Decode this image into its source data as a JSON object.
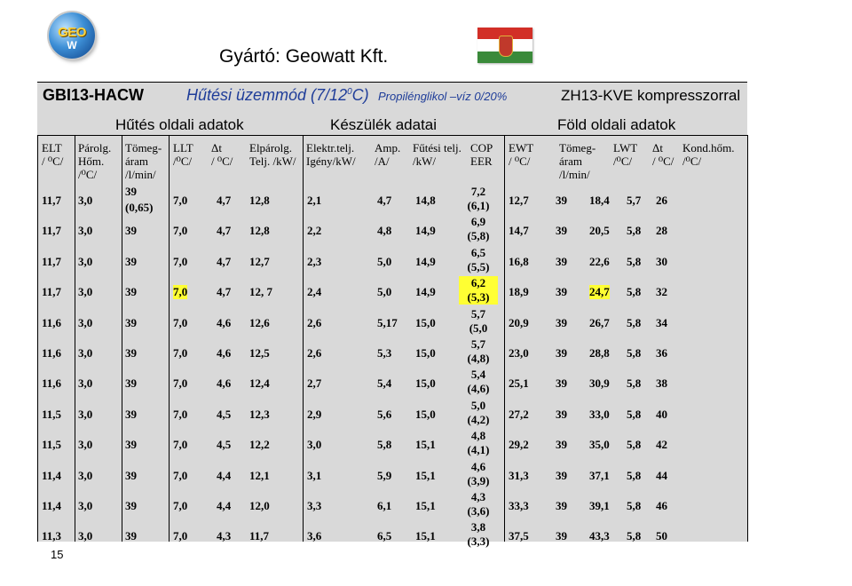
{
  "logo": {
    "text": "GEO",
    "mark": "W"
  },
  "header": {
    "manufacturer": "Gyártó: Geowatt Kft.",
    "model": "GBI13-HACW",
    "mode": "Hűtési üzemmód (7/12",
    "mode_sup": "0",
    "mode_end": "C)",
    "glycol": "Propilénglikol –víz 0/20%",
    "compressor": "ZH13-KVE kompresszorral"
  },
  "sections": {
    "cooling_side": "Hűtés oldali adatok",
    "device": "Készülék adatai",
    "ground_side": "Föld oldali adatok"
  },
  "columns": [
    {
      "l1": "ELT",
      "l2": "/ ⁰C/"
    },
    {
      "l1": "Párolg.",
      "l2": "Hőm.",
      "l3": "/⁰C/"
    },
    {
      "l1": "Tömeg-",
      "l2": "áram",
      "l3": "/l/min/"
    },
    {
      "l1": "LLT",
      "l2": "/⁰C/"
    },
    {
      "l1": "Δt",
      "l2": "/ ⁰C/"
    },
    {
      "l1": "Elpárolg.",
      "l2": "Telj. /kW/"
    },
    {
      "l1": "Elektr.telj.",
      "l2": "Igény/kW/"
    },
    {
      "l1": "Amp.",
      "l2": "/A/"
    },
    {
      "l1": "Fűtési telj.",
      "l2": "/kW/"
    },
    {
      "l1": "COP",
      "l2": "EER"
    },
    {
      "l1": "EWT",
      "l2": "/ ⁰C/"
    },
    {
      "l1": "Tömeg-",
      "l2": "áram",
      "l3": "/l/min/"
    },
    {
      "l1": "LWT",
      "l2": "/⁰C/"
    },
    {
      "l1": "Δt",
      "l2": "/ ⁰C/"
    },
    {
      "l1": "Kond.hőm.",
      "l2": "/⁰C/"
    }
  ],
  "rows": [
    {
      "elt": "11,7",
      "evap": "3,0",
      "flow": "39",
      "flow2": "(0,65)",
      "llt": "7,0",
      "dt": "4,7",
      "cap": "12,8",
      "pow": "2,1",
      "amp": "4,7",
      "heat": "14,8",
      "cop": "7,2",
      "eer": "(6,1)",
      "ewt": "12,7",
      "gflow": "39",
      "lwt": "18,4",
      "gdt": "5,7",
      "cond": "26"
    },
    {
      "elt": "11,7",
      "evap": "3,0",
      "flow": "39",
      "llt": "7,0",
      "dt": "4,7",
      "cap": "12,8",
      "pow": "2,2",
      "amp": "4,8",
      "heat": "14,9",
      "cop": "6,9",
      "eer": "(5,8)",
      "ewt": "14,7",
      "gflow": "39",
      "lwt": "20,5",
      "gdt": "5,8",
      "cond": "28"
    },
    {
      "elt": "11,7",
      "evap": "3,0",
      "flow": "39",
      "llt": "7,0",
      "dt": "4,7",
      "cap": "12,7",
      "pow": "2,3",
      "amp": "5,0",
      "heat": "14,9",
      "cop": "6,5",
      "eer": "(5,5)",
      "ewt": "16,8",
      "gflow": "39",
      "lwt": "22,6",
      "gdt": "5,8",
      "cond": "30"
    },
    {
      "elt": "11,7",
      "evap": "3,0",
      "flow": "39",
      "llt": "7,0",
      "dt": "4,7",
      "cap": "12, 7",
      "pow": "2,4",
      "amp": "5,0",
      "heat": "14,9",
      "cop": "6,2",
      "eer": "(5,3)",
      "ewt": "18,9",
      "gflow": "39",
      "lwt": "24,7",
      "gdt": "5,8",
      "cond": "32"
    },
    {
      "elt": "11,6",
      "evap": "3,0",
      "flow": "39",
      "llt": "7,0",
      "dt": "4,6",
      "cap": "12,6",
      "pow": "2,6",
      "amp": "5,17",
      "heat": "15,0",
      "cop": "5,7",
      "eer": "(5,0",
      "ewt": "20,9",
      "gflow": "39",
      "lwt": "26,7",
      "gdt": "5,8",
      "cond": "34"
    },
    {
      "elt": "11,6",
      "evap": "3,0",
      "flow": "39",
      "llt": "7,0",
      "dt": "4,6",
      "cap": "12,5",
      "pow": "2,6",
      "amp": "5,3",
      "heat": "15,0",
      "cop": "5,7",
      "eer": "(4,8)",
      "ewt": "23,0",
      "gflow": "39",
      "lwt": "28,8",
      "gdt": "5,8",
      "cond": "36"
    },
    {
      "elt": "11,6",
      "evap": "3,0",
      "flow": "39",
      "llt": "7,0",
      "dt": "4,6",
      "cap": "12,4",
      "pow": "2,7",
      "amp": "5,4",
      "heat": "15,0",
      "cop": "5,4",
      "eer": "(4,6)",
      "ewt": "25,1",
      "gflow": "39",
      "lwt": "30,9",
      "gdt": "5,8",
      "cond": "38"
    },
    {
      "elt": "11,5",
      "evap": "3,0",
      "flow": "39",
      "llt": "7,0",
      "dt": "4,5",
      "cap": "12,3",
      "pow": "2,9",
      "amp": "5,6",
      "heat": "15,0",
      "cop": "5,0",
      "eer": "(4,2)",
      "ewt": "27,2",
      "gflow": "39",
      "lwt": "33,0",
      "gdt": "5,8",
      "cond": "40"
    },
    {
      "elt": "11,5",
      "evap": "3,0",
      "flow": "39",
      "llt": "7,0",
      "dt": "4,5",
      "cap": "12,2",
      "pow": "3,0",
      "amp": "5,8",
      "heat": "15,1",
      "cop": "4,8",
      "eer": "(4,1)",
      "ewt": "29,2",
      "gflow": "39",
      "lwt": "35,0",
      "gdt": "5,8",
      "cond": "42"
    },
    {
      "elt": "11,4",
      "evap": "3,0",
      "flow": "39",
      "llt": "7,0",
      "dt": "4,4",
      "cap": "12,1",
      "pow": "3,1",
      "amp": "5,9",
      "heat": "15,1",
      "cop": "4,6",
      "eer": "(3,9)",
      "ewt": "31,3",
      "gflow": "39",
      "lwt": "37,1",
      "gdt": "5,8",
      "cond": "44"
    },
    {
      "elt": "11,4",
      "evap": "3,0",
      "flow": "39",
      "llt": "7,0",
      "dt": "4,4",
      "cap": "12,0",
      "pow": "3,3",
      "amp": "6,1",
      "heat": "15,1",
      "cop": "4,3",
      "eer": "(3,6)",
      "ewt": "33,3",
      "gflow": "39",
      "lwt": "39,1",
      "gdt": "5,8",
      "cond": "46"
    },
    {
      "elt": "11,3",
      "evap": "3,0",
      "flow": "39",
      "llt": "7,0",
      "dt": "4,3",
      "cap": "11,7",
      "pow": "3,6",
      "amp": "6,5",
      "heat": "15,1",
      "cop": "3,8",
      "eer": "(3,3)",
      "ewt": "37,5",
      "gflow": "39",
      "lwt": "43,3",
      "gdt": "5,8",
      "cond": "50"
    }
  ],
  "highlight_row": 3,
  "page_number": "15",
  "colors": {
    "panel": "#d9d9d9",
    "mode_text": "#1f3d99",
    "highlight": "#ffff33"
  }
}
